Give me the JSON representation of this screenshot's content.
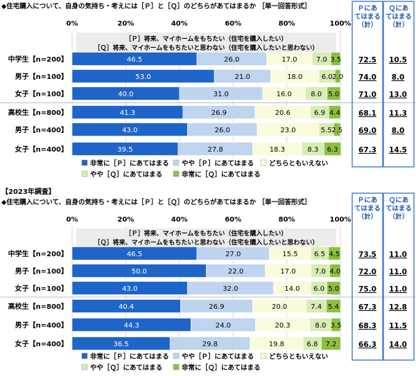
{
  "chart_data": [
    {
      "type": "bar",
      "stacked": true,
      "orientation": "horizontal",
      "title": "◆住宅購入について、自身の気持ち・考えには［Ｐ］と［Ｑ］のどちらがあてはまるか ［単一回答形式］",
      "statement_p": "［Ｐ］将来、マイホームをもちたい（住宅を購入したい）",
      "statement_q": "［Ｑ］将来、マイホームをもちたいと思わない（住宅を購入したいと思わない）",
      "x_ticks": [
        "0%",
        "20%",
        "40%",
        "60%",
        "80%",
        "100%"
      ],
      "xlim": [
        0,
        100
      ],
      "categories": [
        "中学生【n=200】",
        "男子【n=100】",
        "女子【n=100】",
        "高校生【n=800】",
        "男子【n=400】",
        "女子【n=400】"
      ],
      "series": [
        {
          "name": "非常に［Ｐ］にあてはまる",
          "color": "#1f64c8",
          "values": [
            46.5,
            53.0,
            40.0,
            41.3,
            43.0,
            39.5
          ]
        },
        {
          "name": "やや［Ｐ］にあてはまる",
          "color": "#bed4ef",
          "values": [
            26.0,
            21.0,
            31.0,
            26.9,
            26.0,
            27.8
          ]
        },
        {
          "name": "どちらともいえない",
          "color": "#fafadc",
          "values": [
            17.0,
            18.0,
            16.0,
            20.6,
            23.0,
            18.3
          ]
        },
        {
          "name": "やや［Ｑ］にあてはまる",
          "color": "#d8ecb4",
          "values": [
            7.0,
            6.0,
            8.0,
            6.9,
            5.5,
            8.3
          ]
        },
        {
          "name": "非常に［Ｑ］にあてはまる",
          "color": "#8cc040",
          "values": [
            3.5,
            2.0,
            5.0,
            4.4,
            2.5,
            6.3
          ]
        }
      ],
      "summary_headers": [
        "Ｐにあてはまる（計）",
        "Ｑにあてはまる（計）"
      ],
      "p_total": [
        "72.5",
        "74.0",
        "71.0",
        "68.1",
        "69.0",
        "67.3"
      ],
      "q_total": [
        "10.5",
        "8.0",
        "13.0",
        "11.3",
        "8.0",
        "14.5"
      ]
    },
    {
      "type": "bar",
      "stacked": true,
      "orientation": "horizontal",
      "section_label": "【2023年調査】",
      "title": "◆住宅購入について、自身の気持ち・考えには［Ｐ］と［Ｑ］のどちらがあてはまるか ［単一回答形式］",
      "statement_p": "［Ｐ］将来、マイホームをもちたい（住宅を購入したい）",
      "statement_q": "［Ｑ］将来、マイホームをもちたいと思わない（住宅を購入したいと思わない）",
      "x_ticks": [
        "0%",
        "20%",
        "40%",
        "60%",
        "80%",
        "100%"
      ],
      "xlim": [
        0,
        100
      ],
      "categories": [
        "中学生【n=200】",
        "男子【n=100】",
        "女子【n=100】",
        "高校生【n=800】",
        "男子【n=400】",
        "女子【n=400】"
      ],
      "series": [
        {
          "name": "非常に［Ｐ］にあてはまる",
          "color": "#1f64c8",
          "values": [
            46.5,
            50.0,
            43.0,
            40.4,
            44.3,
            36.5
          ]
        },
        {
          "name": "やや［Ｐ］にあてはまる",
          "color": "#bed4ef",
          "values": [
            27.0,
            22.0,
            32.0,
            26.9,
            24.0,
            29.8
          ]
        },
        {
          "name": "どちらともいえない",
          "color": "#fafadc",
          "values": [
            15.5,
            17.0,
            14.0,
            20.0,
            20.3,
            19.8
          ]
        },
        {
          "name": "やや［Ｑ］にあてはまる",
          "color": "#d8ecb4",
          "values": [
            6.5,
            7.0,
            6.0,
            7.4,
            8.0,
            6.8
          ]
        },
        {
          "name": "非常に［Ｑ］にあてはまる",
          "color": "#8cc040",
          "values": [
            4.5,
            4.0,
            5.0,
            5.4,
            3.5,
            7.2
          ]
        }
      ],
      "summary_headers": [
        "Ｐにあてはまる（計）",
        "Ｑにあてはまる（計）"
      ],
      "p_total": [
        "73.5",
        "72.0",
        "75.0",
        "67.3",
        "68.3",
        "66.3"
      ],
      "q_total": [
        "11.0",
        "11.0",
        "11.0",
        "12.8",
        "11.5",
        "14.0"
      ]
    }
  ]
}
